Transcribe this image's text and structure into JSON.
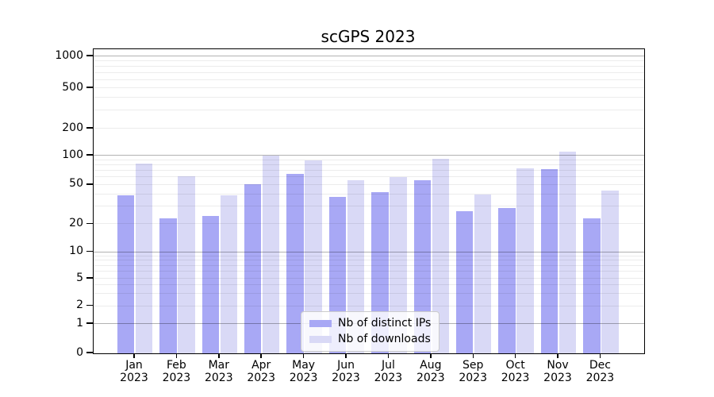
{
  "title": "scGPS 2023",
  "chart_data": {
    "type": "bar",
    "title": "scGPS 2023",
    "categories": [
      "Jan",
      "Feb",
      "Mar",
      "Apr",
      "May",
      "Jun",
      "Jul",
      "Aug",
      "Sep",
      "Oct",
      "Nov",
      "Dec"
    ],
    "category_year": "2023",
    "series": [
      {
        "name": "Nb of distinct IPs",
        "color": "#a8a8f5",
        "values": [
          39,
          23,
          24,
          51,
          65,
          38,
          42,
          56,
          27,
          29,
          73,
          23
        ]
      },
      {
        "name": "Nb of downloads",
        "color": "#d9d9f6",
        "values": [
          83,
          61,
          39,
          100,
          90,
          56,
          60,
          93,
          40,
          74,
          110,
          44
        ]
      }
    ],
    "yaxis": {
      "scale": "symlog",
      "tick_values": [
        0,
        1,
        2,
        5,
        10,
        20,
        50,
        100,
        200,
        500,
        1000
      ],
      "tick_labels": [
        "0",
        "1",
        "2",
        "5",
        "10",
        "20",
        "50",
        "100",
        "200",
        "500",
        "1000"
      ],
      "major_gridlines": [
        1,
        10,
        100,
        1000
      ],
      "minor_gridlines": [
        2,
        3,
        4,
        5,
        6,
        7,
        8,
        9,
        20,
        30,
        40,
        50,
        60,
        70,
        80,
        90,
        200,
        300,
        400,
        500,
        600,
        700,
        800,
        900
      ],
      "ylim": [
        0,
        1000
      ]
    },
    "legend": {
      "position": "lower center",
      "entries": [
        "Nb of distinct IPs",
        "Nb of downloads"
      ]
    },
    "grid": true
  }
}
